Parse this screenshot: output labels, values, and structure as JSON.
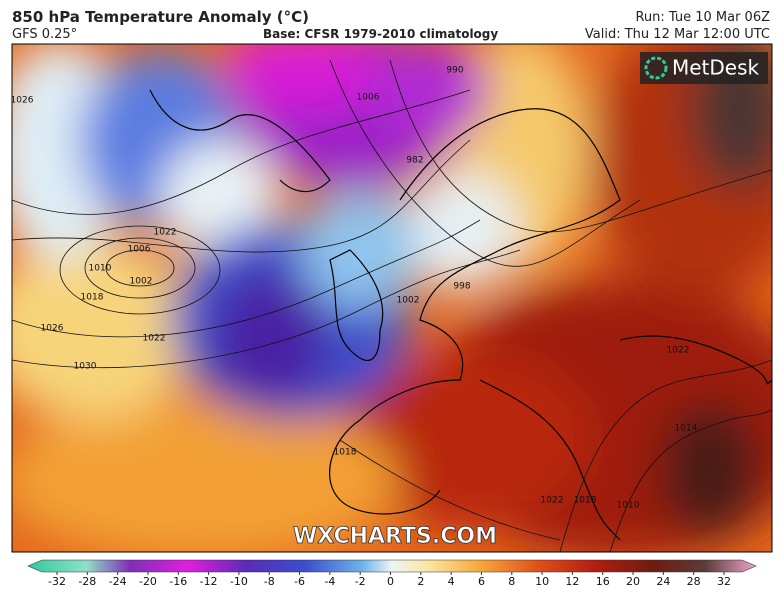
{
  "header": {
    "title": "850 hPa Temperature Anomaly (°C)",
    "subtitle": "GFS 0.25°",
    "base": "Base: CFSR 1979-2010 climatology",
    "run": "Run: Tue 10 Mar 06Z",
    "valid": "Valid: Thu 12 Mar 12:00 UTC"
  },
  "logo": "MetDesk",
  "watermark": "WXCHARTS.COM",
  "isobars": [
    "1026",
    "1022",
    "1006",
    "1010",
    "1002",
    "1018",
    "1026",
    "1022",
    "1030",
    "1006",
    "990",
    "982",
    "1002",
    "998",
    "1022",
    "1014",
    "1018",
    "1022",
    "1018",
    "1010"
  ],
  "colorbar": {
    "ticks": [
      -32,
      -28,
      -24,
      -20,
      -16,
      -12,
      -10,
      -8,
      -6,
      -4,
      -2,
      0,
      2,
      4,
      6,
      8,
      10,
      12,
      16,
      20,
      24,
      28,
      32
    ]
  }
}
